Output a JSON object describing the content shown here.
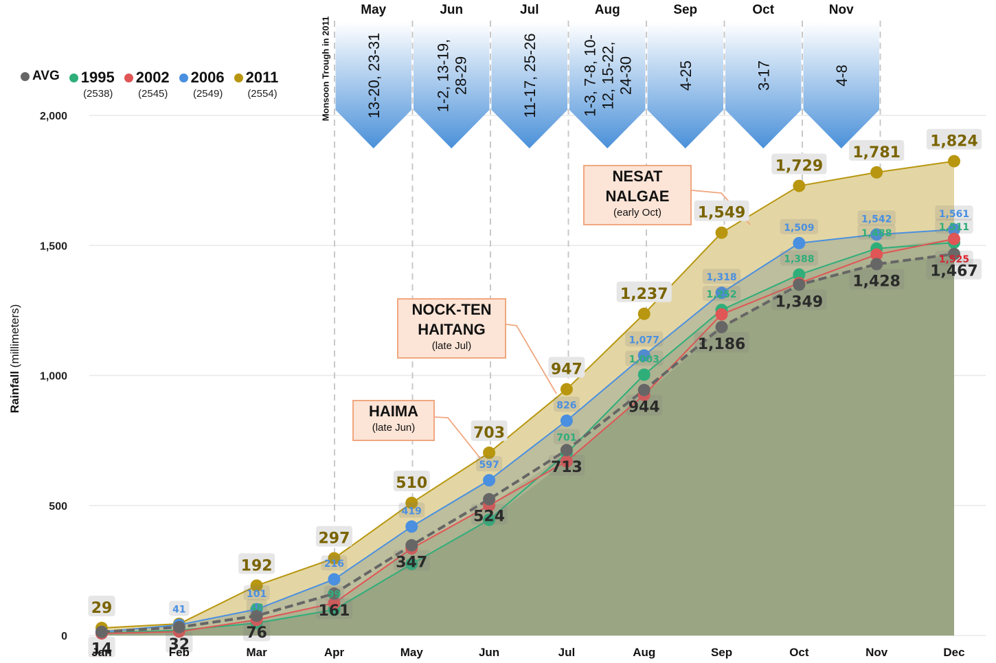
{
  "chart_data": {
    "type": "area",
    "title": "",
    "xlabel": "",
    "ylabel": "Rainfall (millimeters)",
    "ylabel_bold": "Rainfall",
    "ylabel_rest": " (millimeters)",
    "ylim": [
      0,
      2000
    ],
    "yticks": [
      0,
      500,
      1000,
      1500,
      2000
    ],
    "ytick_labels": [
      "0",
      "500",
      "1,000",
      "1,500",
      "2,000"
    ],
    "grid": true,
    "legend_position": "top-left",
    "categories": [
      "Jan",
      "Feb",
      "Mar",
      "Apr",
      "May",
      "Jun",
      "Jul",
      "Aug",
      "Sep",
      "Oct",
      "Nov",
      "Dec"
    ],
    "series": [
      {
        "name": "2011",
        "sub": "(2554)",
        "color": "#b8960f",
        "label_color": "#7a6400",
        "values": [
          29,
          45,
          192,
          297,
          510,
          703,
          947,
          1237,
          1549,
          1729,
          1781,
          1824
        ],
        "labels": [
          "29",
          "",
          "192",
          "297",
          "510",
          "703",
          "947",
          "1,237",
          "1,549",
          "1,729",
          "1,781",
          "1,824"
        ]
      },
      {
        "name": "2006",
        "sub": "(2549)",
        "color": "#4a8fe0",
        "label_color": "#4a8fe0",
        "values": [
          14,
          41,
          101,
          216,
          419,
          597,
          826,
          1077,
          1318,
          1509,
          1542,
          1561
        ],
        "labels": [
          "",
          "41",
          "101",
          "216",
          "419",
          "597",
          "826",
          "1,077",
          "1,318",
          "1,509",
          "1,542",
          "1,561"
        ]
      },
      {
        "name": "1995",
        "sub": "(2538)",
        "color": "#2fae7a",
        "label_color": "#2fae7a",
        "values": [
          10,
          20,
          48,
          99,
          275,
          445,
          701,
          1003,
          1252,
          1388,
          1488,
          1511
        ],
        "labels": [
          "",
          "",
          "48",
          "99",
          "",
          "",
          "701",
          "1,003",
          "1,252",
          "1,388",
          "1,488",
          "1,511"
        ]
      },
      {
        "name": "2002",
        "sub": "(2545)",
        "color": "#e05555",
        "label_color": "#e0202a",
        "values": [
          8,
          15,
          60,
          125,
          335,
          500,
          670,
          925,
          1235,
          1355,
          1465,
          1525
        ],
        "labels": [
          "",
          "",
          "",
          "",
          "",
          "",
          "",
          "",
          "",
          "",
          "",
          "1,525"
        ]
      },
      {
        "name": "AVG",
        "sub": "",
        "color": "#666666",
        "label_color": "#2a2a2a",
        "values": [
          14,
          32,
          76,
          161,
          347,
          524,
          713,
          944,
          1186,
          1349,
          1428,
          1467
        ],
        "labels": [
          "14",
          "32",
          "76",
          "161",
          "347",
          "524",
          "713",
          "944",
          "1,186",
          "1,349",
          "1,428",
          "1,467"
        ]
      }
    ],
    "legend_order": [
      "AVG",
      "1995",
      "2002",
      "2006",
      "2011"
    ],
    "annotations": {
      "monsoon_title": "Monsoon Trough in 2011",
      "monsoon_periods": [
        {
          "month": "May",
          "dates": [
            "13-20, 23-31"
          ]
        },
        {
          "month": "Jun",
          "dates": [
            "1-2, 13-19,",
            "28-29"
          ]
        },
        {
          "month": "Jul",
          "dates": [
            "11-17, 25-26"
          ]
        },
        {
          "month": "Aug",
          "dates": [
            "1-3, 7-8, 10-",
            "12, 15-22,",
            "24-30"
          ]
        },
        {
          "month": "Sep",
          "dates": [
            "4-25"
          ]
        },
        {
          "month": "Oct",
          "dates": [
            "3-17"
          ]
        },
        {
          "month": "Nov",
          "dates": [
            "4-8"
          ]
        }
      ],
      "storms": [
        {
          "name_lines": [
            "HAIMA"
          ],
          "when": "(late Jun)",
          "month": "Jun"
        },
        {
          "name_lines": [
            "NOCK-TEN",
            "HAITANG"
          ],
          "when": "(late Jul)",
          "month": "Jul"
        },
        {
          "name_lines": [
            "NESAT",
            "NALGAE"
          ],
          "when": "(early Oct)",
          "month": "Sep"
        }
      ]
    }
  },
  "legend": [
    {
      "name": "AVG",
      "sub": "",
      "color": "#666666"
    },
    {
      "name": "1995",
      "sub": "(2538)",
      "color": "#2fae7a"
    },
    {
      "name": "2002",
      "sub": "(2545)",
      "color": "#e05555"
    },
    {
      "name": "2006",
      "sub": "(2549)",
      "color": "#4a8fe0"
    },
    {
      "name": "2011",
      "sub": "(2554)",
      "color": "#b8960f"
    }
  ],
  "colors": {
    "area_2011": "#e3d6a4",
    "area_2006": "#b8bb9c",
    "area_1995": "#9aa583",
    "gridline": "#e8e8e8",
    "arrow_top": "#ffffff",
    "arrow_bottom": "#4a90d9",
    "callout_fill": "#fce4d6",
    "callout_border": "#f0a77f",
    "label_box": "#e6e6e6"
  }
}
